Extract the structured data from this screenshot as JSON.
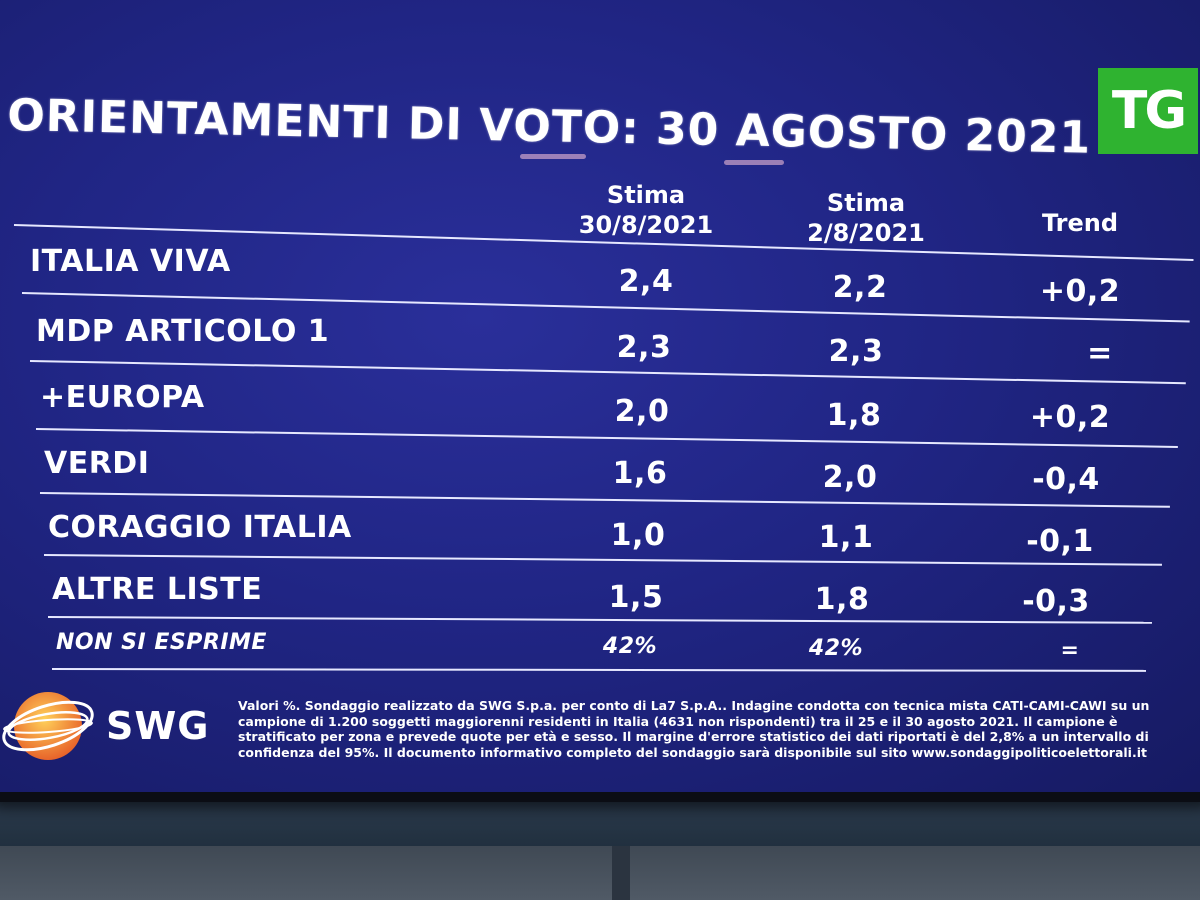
{
  "title": "ORIENTAMENTI DI VOTO: 30 AGOSTO 2021",
  "logo_text": "TG",
  "columns": {
    "col1": [
      "Stima",
      "30/8/2021"
    ],
    "col2": [
      "Stima",
      "2/8/2021"
    ],
    "col3": "Trend"
  },
  "rows": [
    {
      "label": "ITALIA VIVA",
      "v1": "2,4",
      "v2": "2,2",
      "trend": "+0,2"
    },
    {
      "label": "MDP ARTICOLO 1",
      "v1": "2,3",
      "v2": "2,3",
      "trend": "="
    },
    {
      "label": "+EUROPA",
      "v1": "2,0",
      "v2": "1,8",
      "trend": "+0,2"
    },
    {
      "label": "VERDI",
      "v1": "1,6",
      "v2": "2,0",
      "trend": "-0,4"
    },
    {
      "label": "CORAGGIO ITALIA",
      "v1": "1,0",
      "v2": "1,1",
      "trend": "-0,1"
    },
    {
      "label": "ALTRE LISTE",
      "v1": "1,5",
      "v2": "1,8",
      "trend": "-0,3"
    },
    {
      "label": "NON SI ESPRIME",
      "v1": "42%",
      "v2": "42%",
      "trend": "="
    }
  ],
  "source_logo": "SWG",
  "footnote": "Valori %. Sondaggio realizzato da SWG S.p.a. per conto di La7 S.p.A.. Indagine condotta con tecnica mista CATI-CAMI-CAWI su un campione di 1.200 soggetti maggiorenni residenti in Italia (4631 non rispondenti) tra il 25 e il 30 agosto 2021. Il campione è stratificato per zona e prevede quote per età e sesso. Il margine d'errore statistico dei dati riportati è del 2,8% a un intervallo di confidenza del 95%. Il documento informativo completo del sondaggio sarà disponibile sul sito www.sondaggipoliticoelettorali.it",
  "colors": {
    "screen": "#202584",
    "logo_green": "#2fb330",
    "swg_orange": "#f2a13a"
  }
}
